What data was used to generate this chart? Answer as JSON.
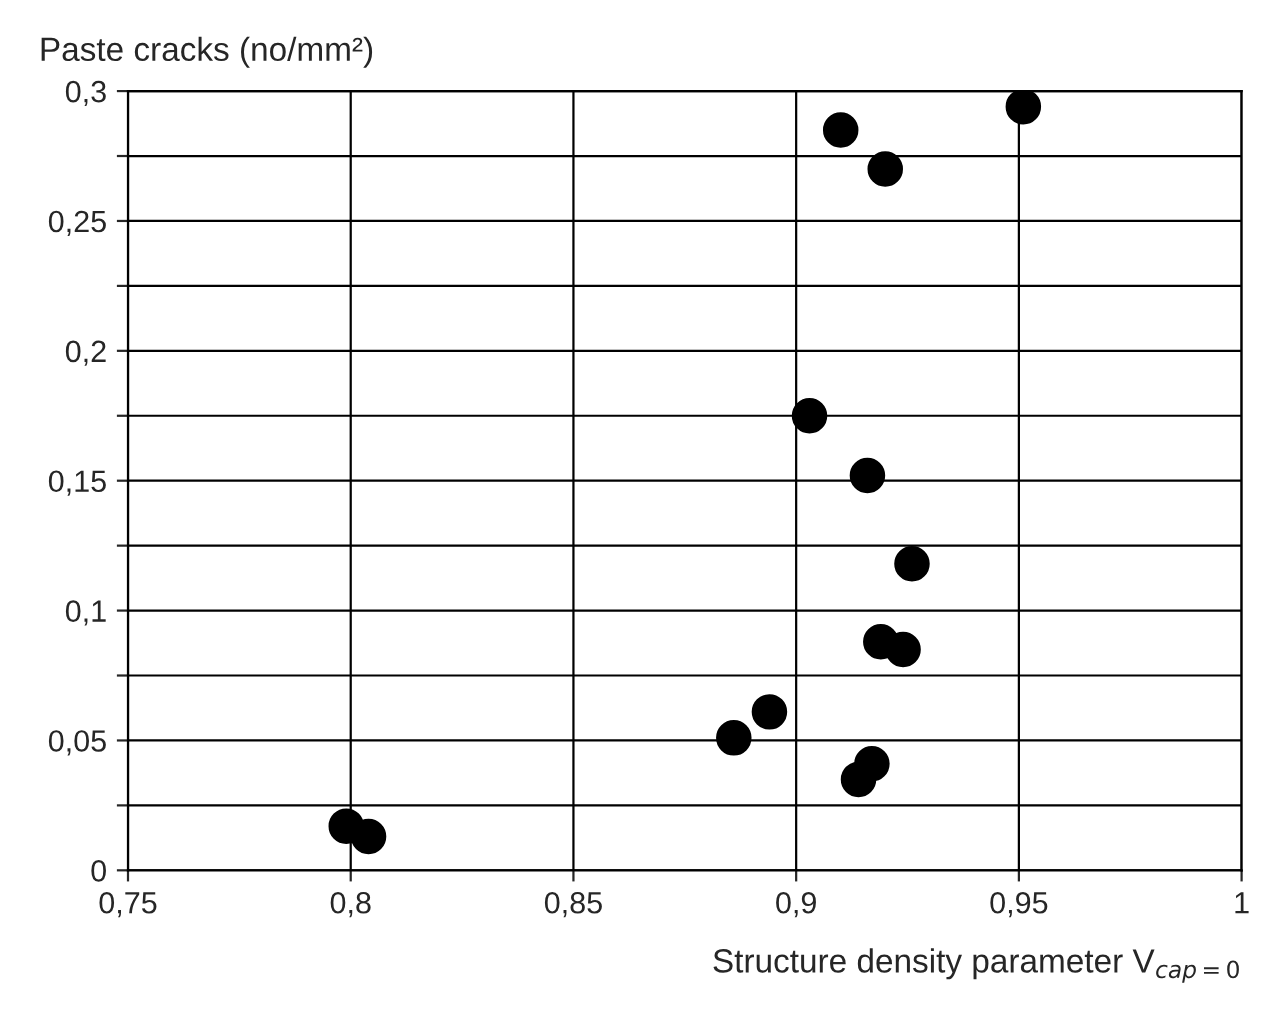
{
  "chart_data": {
    "type": "scatter",
    "xlabel": "Structure density parameter V$_{cap=0}$",
    "ylabel": "Paste cracks (no/mm²)",
    "x": [
      0.799,
      0.804,
      0.886,
      0.894,
      0.91,
      0.92,
      0.951,
      0.903,
      0.916,
      0.926,
      0.919,
      0.924,
      0.917,
      0.914
    ],
    "values": [
      0.017,
      0.013,
      0.051,
      0.061,
      0.285,
      0.27,
      0.294,
      0.175,
      0.152,
      0.118,
      0.088,
      0.085,
      0.041,
      0.035
    ],
    "color": "#000000",
    "marker": "circle",
    "grid": true,
    "legend": false,
    "xlim": [
      0.75,
      1.0
    ],
    "xticks": [
      {
        "value": 0.75,
        "label": "0,75"
      },
      {
        "value": 0.8,
        "label": "0,8"
      },
      {
        "value": 0.85,
        "label": "0,85"
      },
      {
        "value": 0.9,
        "label": "0,9"
      },
      {
        "value": 0.95,
        "label": "0,95"
      },
      {
        "value": 1.0,
        "label": "1"
      }
    ],
    "ylim": [
      0,
      0.3
    ],
    "yticks": [
      {
        "value": 0,
        "label": "0"
      },
      {
        "value": 0.025,
        "label": null
      },
      {
        "value": 0.05,
        "label": "0,05"
      },
      {
        "value": 0.075,
        "label": null
      },
      {
        "value": 0.1,
        "label": "0,1"
      },
      {
        "value": 0.125,
        "label": null
      },
      {
        "value": 0.15,
        "label": "0,15"
      },
      {
        "value": 0.175,
        "label": null
      },
      {
        "value": 0.2,
        "label": "0,2"
      },
      {
        "value": 0.225,
        "label": null
      },
      {
        "value": 0.25,
        "label": "0,25"
      },
      {
        "value": 0.275,
        "label": null
      },
      {
        "value": 0.3,
        "label": "0,3"
      }
    ]
  }
}
